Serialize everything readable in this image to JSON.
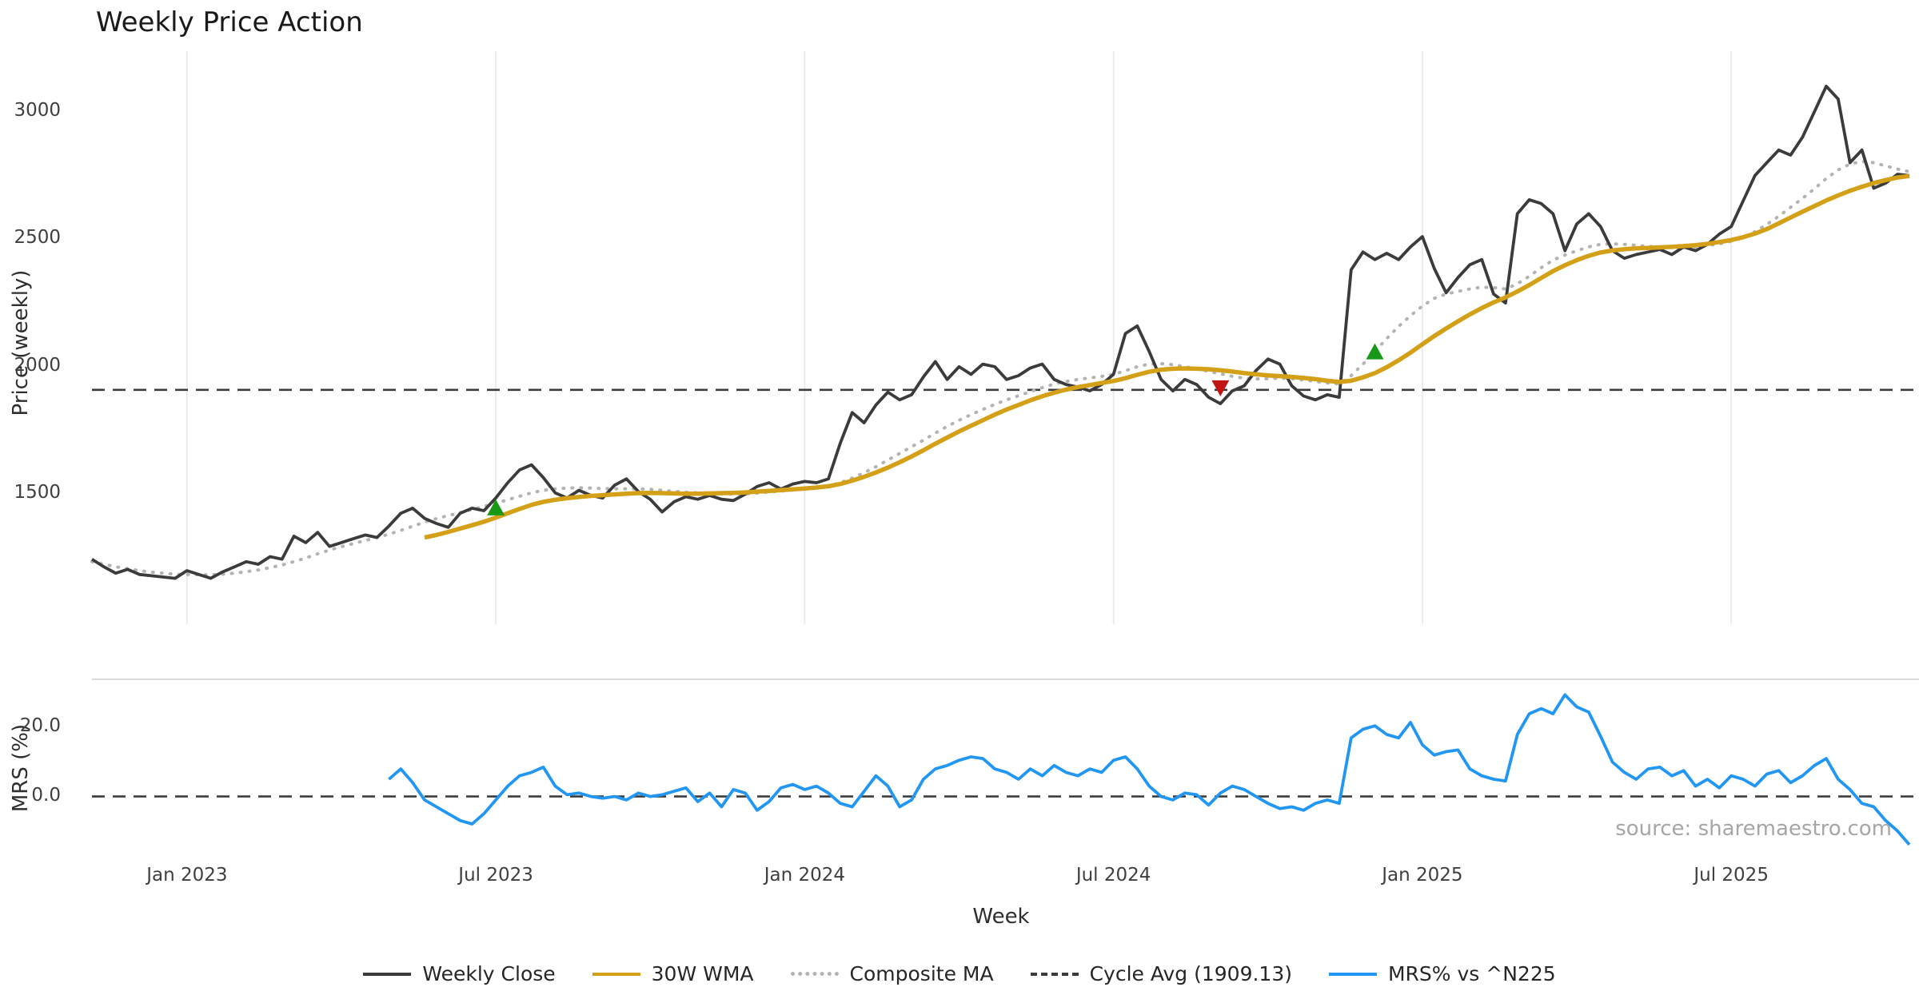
{
  "source": "source: sharemaestro.com",
  "chart_data": {
    "type": "line",
    "title": "Weekly Price Action",
    "xlabel": "Week",
    "ylabel_price": "Price (weekly)",
    "ylabel_mrs": "MRS (%)",
    "n_weeks": 154,
    "cycle_avg": 1909.13,
    "price_ylim": [
      990,
      3175
    ],
    "mrs_ylim": [
      -17.5,
      34
    ],
    "x_tick_labels": [
      "Jan 2023",
      "Jul 2023",
      "Jan 2024",
      "Jul 2024",
      "Jan 2025",
      "Jul 2025"
    ],
    "x_tick_indices": [
      8,
      34,
      60,
      86,
      112,
      138
    ],
    "price_yticks": [
      {
        "label": "3000",
        "value": 3000
      },
      {
        "label": "2500",
        "value": 2500
      },
      {
        "label": "2000",
        "value": 2000
      },
      {
        "label": "1500",
        "value": 1500
      }
    ],
    "mrs_yticks": [
      {
        "label": "20.0",
        "value": 20
      },
      {
        "label": "0.0",
        "value": 0
      }
    ],
    "grid_color": "#ebebeb",
    "series": [
      {
        "name": "Weekly Close",
        "panel": "price",
        "color": "#3b3b3b",
        "style": "solid",
        "width": 3.8,
        "values": [
          1245,
          1215,
          1190,
          1205,
          1185,
          1180,
          1175,
          1170,
          1200,
          1185,
          1170,
          1195,
          1215,
          1235,
          1225,
          1255,
          1245,
          1335,
          1310,
          1350,
          1295,
          1310,
          1325,
          1340,
          1330,
          1375,
          1425,
          1445,
          1405,
          1385,
          1370,
          1425,
          1445,
          1435,
          1485,
          1545,
          1595,
          1615,
          1565,
          1505,
          1485,
          1515,
          1495,
          1485,
          1535,
          1560,
          1510,
          1480,
          1430,
          1470,
          1490,
          1480,
          1495,
          1480,
          1475,
          1500,
          1530,
          1545,
          1520,
          1540,
          1550,
          1545,
          1560,
          1700,
          1820,
          1780,
          1850,
          1900,
          1870,
          1890,
          1960,
          2020,
          1950,
          2000,
          1970,
          2010,
          2000,
          1950,
          1965,
          1995,
          2010,
          1950,
          1930,
          1920,
          1905,
          1930,
          1970,
          2130,
          2160,
          2060,
          1950,
          1905,
          1950,
          1930,
          1880,
          1855,
          1905,
          1925,
          1985,
          2030,
          2010,
          1925,
          1885,
          1870,
          1890,
          1880,
          2380,
          2450,
          2420,
          2445,
          2420,
          2470,
          2510,
          2385,
          2290,
          2350,
          2400,
          2420,
          2285,
          2250,
          2600,
          2655,
          2640,
          2600,
          2455,
          2560,
          2600,
          2550,
          2455,
          2425,
          2440,
          2450,
          2460,
          2440,
          2470,
          2455,
          2480,
          2520,
          2550,
          2650,
          2750,
          2800,
          2850,
          2830,
          2900,
          3000,
          3100,
          3050,
          2800,
          2850,
          2700,
          2720,
          2755,
          2750
        ]
      },
      {
        "name": "30W WMA",
        "panel": "price",
        "color": "#d4a017",
        "style": "solid",
        "width": 5.5,
        "values": [
          null,
          null,
          null,
          null,
          null,
          null,
          null,
          null,
          null,
          null,
          null,
          null,
          null,
          null,
          null,
          null,
          null,
          null,
          null,
          null,
          null,
          null,
          null,
          null,
          null,
          null,
          null,
          null,
          1330,
          1340,
          1352,
          1365,
          1378,
          1392,
          1408,
          1425,
          1442,
          1458,
          1470,
          1478,
          1484,
          1489,
          1493,
          1496,
          1499,
          1502,
          1504,
          1505,
          1504,
          1503,
          1502,
          1502,
          1503,
          1504,
          1505,
          1507,
          1510,
          1513,
          1516,
          1519,
          1522,
          1526,
          1531,
          1540,
          1553,
          1568,
          1585,
          1604,
          1625,
          1648,
          1672,
          1698,
          1722,
          1746,
          1768,
          1790,
          1812,
          1832,
          1850,
          1868,
          1884,
          1898,
          1910,
          1920,
          1928,
          1936,
          1944,
          1955,
          1968,
          1980,
          1988,
          1992,
          1993,
          1992,
          1990,
          1986,
          1981,
          1975,
          1970,
          1966,
          1963,
          1960,
          1956,
          1951,
          1945,
          1940,
          1945,
          1958,
          1975,
          1998,
          2025,
          2055,
          2088,
          2120,
          2150,
          2178,
          2205,
          2230,
          2252,
          2272,
          2295,
          2320,
          2348,
          2375,
          2398,
          2418,
          2435,
          2448,
          2456,
          2461,
          2464,
          2466,
          2468,
          2470,
          2473,
          2477,
          2482,
          2489,
          2497,
          2508,
          2522,
          2540,
          2562,
          2585,
          2608,
          2630,
          2652,
          2672,
          2690,
          2706,
          2720,
          2732,
          2742,
          2748
        ]
      },
      {
        "name": "Composite MA",
        "panel": "price",
        "color": "#b3b3b3",
        "style": "dotted",
        "width": 4,
        "values": [
          1235,
          1225,
          1215,
          1208,
          1200,
          1194,
          1190,
          1186,
          1185,
          1184,
          1184,
          1186,
          1190,
          1196,
          1203,
          1212,
          1222,
          1235,
          1250,
          1266,
          1281,
          1294,
          1306,
          1318,
          1330,
          1343,
          1358,
          1374,
          1390,
          1404,
          1416,
          1428,
          1440,
          1452,
          1465,
          1478,
          1492,
          1505,
          1515,
          1521,
          1524,
          1525,
          1524,
          1522,
          1521,
          1521,
          1521,
          1519,
          1515,
          1511,
          1508,
          1505,
          1503,
          1501,
          1500,
          1501,
          1504,
          1508,
          1512,
          1516,
          1520,
          1525,
          1532,
          1545,
          1563,
          1584,
          1608,
          1634,
          1660,
          1686,
          1712,
          1740,
          1766,
          1790,
          1812,
          1832,
          1852,
          1870,
          1886,
          1902,
          1918,
          1932,
          1942,
          1950,
          1956,
          1962,
          1970,
          1984,
          2000,
          2010,
          2012,
          2008,
          2000,
          1992,
          1982,
          1972,
          1962,
          1955,
          1952,
          1953,
          1955,
          1953,
          1948,
          1942,
          1936,
          1932,
          1965,
          2010,
          2060,
          2110,
          2158,
          2200,
          2238,
          2268,
          2285,
          2295,
          2305,
          2312,
          2310,
          2305,
          2325,
          2355,
          2388,
          2418,
          2438,
          2455,
          2470,
          2480,
          2482,
          2480,
          2476,
          2472,
          2470,
          2468,
          2468,
          2470,
          2475,
          2482,
          2492,
          2508,
          2530,
          2558,
          2590,
          2625,
          2660,
          2698,
          2738,
          2772,
          2795,
          2805,
          2800,
          2788,
          2775,
          2765
        ]
      },
      {
        "name": "MRS% vs ^N225",
        "panel": "mrs",
        "color": "#2196f3",
        "style": "solid",
        "width": 3.8,
        "values": [
          null,
          null,
          null,
          null,
          null,
          null,
          null,
          null,
          null,
          null,
          null,
          null,
          null,
          null,
          null,
          null,
          null,
          null,
          null,
          null,
          null,
          null,
          null,
          null,
          null,
          5,
          8,
          4,
          -1,
          -3,
          -5,
          -7,
          -8,
          -5,
          -1,
          3,
          6,
          7,
          8.5,
          3,
          0.5,
          1,
          0,
          -0.5,
          0,
          -1,
          1,
          0,
          0.5,
          1.5,
          2.5,
          -1.5,
          1,
          -3,
          2,
          1,
          -4,
          -1.5,
          2.5,
          3.5,
          2,
          3,
          1,
          -2,
          -3,
          1.5,
          6,
          3,
          -3,
          -1,
          5,
          8,
          9,
          10.5,
          11.5,
          11,
          8,
          7,
          5,
          8,
          6,
          9,
          7,
          6,
          8,
          7,
          10.5,
          11.5,
          8,
          3,
          0,
          -1,
          1,
          0.5,
          -2.5,
          1,
          3,
          2,
          0,
          -2,
          -3.5,
          -3,
          -4,
          -2,
          -1,
          -2,
          17,
          19.5,
          20.5,
          18,
          17,
          21.5,
          15,
          12,
          13,
          13.5,
          8,
          6,
          5,
          4.5,
          18,
          24,
          25.5,
          24,
          29.5,
          26,
          24.5,
          17.5,
          10,
          7,
          5,
          8,
          8.5,
          6,
          7.5,
          3,
          5,
          2.5,
          6,
          5,
          3,
          6.5,
          7.5,
          4,
          6,
          9,
          11,
          5,
          2,
          -2,
          -3,
          -7,
          -10,
          -14
        ]
      }
    ],
    "markers": [
      {
        "index": 34,
        "price": 1448,
        "shape": "triangle-up",
        "color": "#179917"
      },
      {
        "index": 95,
        "price": 1915,
        "shape": "triangle-down",
        "color": "#c21616"
      },
      {
        "index": 108,
        "price": 2060,
        "shape": "triangle-up",
        "color": "#179917"
      }
    ],
    "legend": [
      {
        "label": "Weekly Close",
        "color": "#3b3b3b",
        "style": "solid"
      },
      {
        "label": "30W WMA",
        "color": "#d4a017",
        "style": "solid"
      },
      {
        "label": "Composite MA",
        "color": "#b3b3b3",
        "style": "dotted"
      },
      {
        "label": "Cycle Avg (1909.13)",
        "color": "#3b3b3b",
        "style": "dashed"
      },
      {
        "label": "MRS% vs ^N225",
        "color": "#2196f3",
        "style": "solid"
      }
    ]
  }
}
